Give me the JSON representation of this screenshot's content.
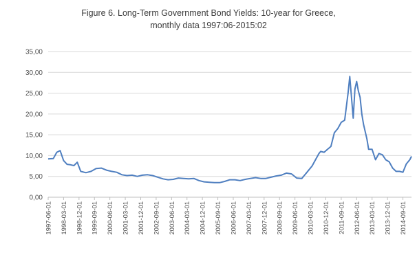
{
  "chart_data": {
    "type": "line",
    "title_line1": "Figure 6. Long-Term Government Bond Yields: 10-year for Greece,",
    "title_line2": "monthly data 1997:06-2015:02",
    "ylim": [
      0,
      35
    ],
    "y_ticks": [
      "0,00",
      "5,00",
      "10,00",
      "15,00",
      "20,00",
      "25,00",
      "30,00",
      "35,00"
    ],
    "y_tick_values": [
      0,
      5,
      10,
      15,
      20,
      25,
      30,
      35
    ],
    "grid": true,
    "legend": "none",
    "x_tick_labels": [
      "1997-06-01",
      "1998-03-01",
      "1998-12-01",
      "1999-09-01",
      "2000-06-01",
      "2001-03-01",
      "2001-12-01",
      "2002-09-01",
      "2003-06-01",
      "2004-03-01",
      "2004-12-01",
      "2005-09-01",
      "2006-06-01",
      "2007-03-01",
      "2007-12-01",
      "2008-09-01",
      "2009-06-01",
      "2010-03-01",
      "2010-12-01",
      "2011-09-01",
      "2012-06-01",
      "2013-03-01",
      "2013-12-01",
      "2014-09-01"
    ],
    "x_start": "1997-06",
    "x_end": "2015-02",
    "line_color": "#4f7fc0",
    "series": [
      {
        "points": [
          [
            "1997-06",
            9.2
          ],
          [
            "1997-09",
            9.3
          ],
          [
            "1997-11",
            10.8
          ],
          [
            "1998-01",
            11.2
          ],
          [
            "1998-03",
            8.8
          ],
          [
            "1998-05",
            7.9
          ],
          [
            "1998-07",
            7.8
          ],
          [
            "1998-09",
            7.6
          ],
          [
            "1998-11",
            8.4
          ],
          [
            "1999-01",
            6.2
          ],
          [
            "1999-04",
            5.9
          ],
          [
            "1999-07",
            6.2
          ],
          [
            "1999-10",
            6.9
          ],
          [
            "2000-01",
            7.0
          ],
          [
            "2000-04",
            6.5
          ],
          [
            "2000-07",
            6.2
          ],
          [
            "2000-10",
            6.0
          ],
          [
            "2001-01",
            5.4
          ],
          [
            "2001-04",
            5.2
          ],
          [
            "2001-07",
            5.3
          ],
          [
            "2001-10",
            5.0
          ],
          [
            "2002-01",
            5.3
          ],
          [
            "2002-04",
            5.4
          ],
          [
            "2002-07",
            5.2
          ],
          [
            "2002-10",
            4.8
          ],
          [
            "2003-01",
            4.4
          ],
          [
            "2003-04",
            4.2
          ],
          [
            "2003-07",
            4.3
          ],
          [
            "2003-10",
            4.6
          ],
          [
            "2004-01",
            4.5
          ],
          [
            "2004-04",
            4.4
          ],
          [
            "2004-07",
            4.5
          ],
          [
            "2004-10",
            4.0
          ],
          [
            "2005-01",
            3.7
          ],
          [
            "2005-04",
            3.6
          ],
          [
            "2005-07",
            3.5
          ],
          [
            "2005-10",
            3.5
          ],
          [
            "2006-01",
            3.8
          ],
          [
            "2006-04",
            4.2
          ],
          [
            "2006-07",
            4.2
          ],
          [
            "2006-10",
            4.0
          ],
          [
            "2007-01",
            4.3
          ],
          [
            "2007-04",
            4.5
          ],
          [
            "2007-07",
            4.7
          ],
          [
            "2007-10",
            4.5
          ],
          [
            "2008-01",
            4.5
          ],
          [
            "2008-04",
            4.8
          ],
          [
            "2008-07",
            5.1
          ],
          [
            "2008-10",
            5.3
          ],
          [
            "2009-01",
            5.8
          ],
          [
            "2009-04",
            5.6
          ],
          [
            "2009-07",
            4.6
          ],
          [
            "2009-10",
            4.5
          ],
          [
            "2010-01",
            6.0
          ],
          [
            "2010-04",
            7.5
          ],
          [
            "2010-06",
            9.0
          ],
          [
            "2010-08",
            10.5
          ],
          [
            "2010-09",
            11.0
          ],
          [
            "2010-11",
            10.8
          ],
          [
            "2011-01",
            11.5
          ],
          [
            "2011-03",
            12.2
          ],
          [
            "2011-05",
            15.5
          ],
          [
            "2011-07",
            16.5
          ],
          [
            "2011-09",
            18.0
          ],
          [
            "2011-11",
            18.5
          ],
          [
            "2012-01",
            25.0
          ],
          [
            "2012-02",
            29.0
          ],
          [
            "2012-03",
            24.0
          ],
          [
            "2012-04",
            19.0
          ],
          [
            "2012-05",
            26.0
          ],
          [
            "2012-06",
            27.8
          ],
          [
            "2012-07",
            25.5
          ],
          [
            "2012-08",
            24.0
          ],
          [
            "2012-09",
            20.0
          ],
          [
            "2012-10",
            17.5
          ],
          [
            "2012-12",
            14.0
          ],
          [
            "2013-01",
            11.5
          ],
          [
            "2013-03",
            11.5
          ],
          [
            "2013-05",
            9.0
          ],
          [
            "2013-07",
            10.5
          ],
          [
            "2013-09",
            10.2
          ],
          [
            "2013-11",
            9.0
          ],
          [
            "2014-01",
            8.5
          ],
          [
            "2014-03",
            7.0
          ],
          [
            "2014-05",
            6.2
          ],
          [
            "2014-07",
            6.2
          ],
          [
            "2014-09",
            6.0
          ],
          [
            "2014-11",
            8.0
          ],
          [
            "2015-01",
            9.0
          ],
          [
            "2015-02",
            9.8
          ]
        ]
      }
    ]
  }
}
